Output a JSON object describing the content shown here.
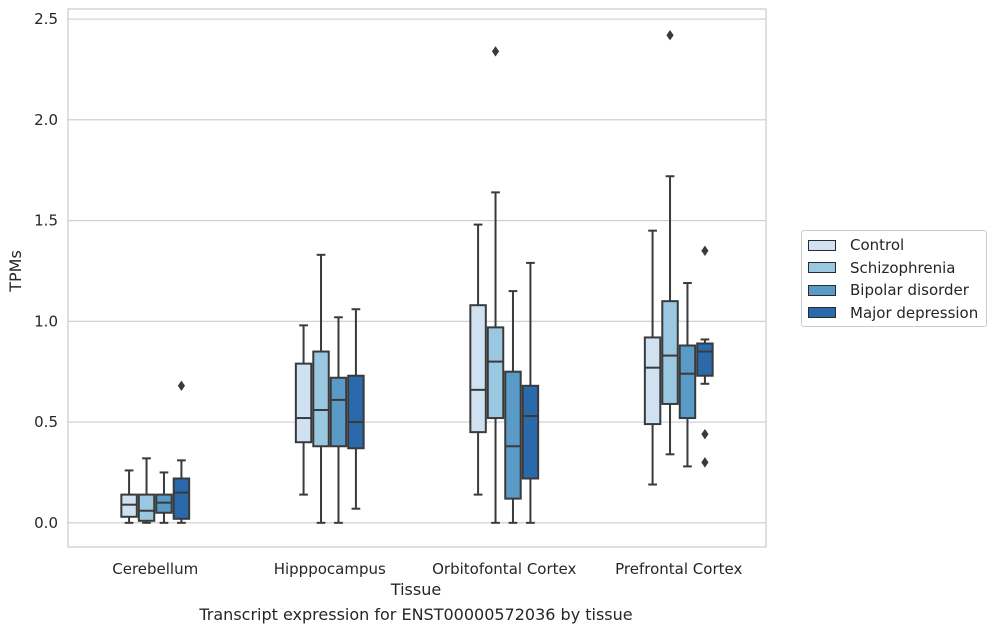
{
  "chart_data": {
    "type": "boxplot",
    "title": "Transcript expression for ENST00000572036 by tissue",
    "xlabel": "Tissue",
    "ylabel": "TPMs",
    "ylim": [
      -0.12,
      2.55
    ],
    "yticks": [
      "0.0",
      "0.5",
      "1.0",
      "1.5",
      "2.0",
      "2.5"
    ],
    "grid": true,
    "legend_position": "right",
    "categories": [
      "Cerebellum",
      "Hipppocampus",
      "Orbitofontal Cortex",
      "Prefrontal Cortex"
    ],
    "series": [
      {
        "name": "Control",
        "color": "#d0e1f2",
        "boxes": [
          {
            "min": 0.0,
            "q1": 0.03,
            "median": 0.09,
            "q3": 0.14,
            "max": 0.26,
            "outliers": []
          },
          {
            "min": 0.14,
            "q1": 0.4,
            "median": 0.52,
            "q3": 0.79,
            "max": 0.98,
            "outliers": []
          },
          {
            "min": 0.14,
            "q1": 0.45,
            "median": 0.66,
            "q3": 1.08,
            "max": 1.48,
            "outliers": []
          },
          {
            "min": 0.19,
            "q1": 0.49,
            "median": 0.77,
            "q3": 0.92,
            "max": 1.45,
            "outliers": []
          }
        ]
      },
      {
        "name": "Schizophrenia",
        "color": "#9ac8e0",
        "boxes": [
          {
            "min": 0.0,
            "q1": 0.01,
            "median": 0.06,
            "q3": 0.14,
            "max": 0.32,
            "outliers": []
          },
          {
            "min": 0.0,
            "q1": 0.38,
            "median": 0.56,
            "q3": 0.85,
            "max": 1.33,
            "outliers": []
          },
          {
            "min": 0.0,
            "q1": 0.52,
            "median": 0.8,
            "q3": 0.97,
            "max": 1.64,
            "outliers": [
              2.34
            ]
          },
          {
            "min": 0.34,
            "q1": 0.59,
            "median": 0.83,
            "q3": 1.1,
            "max": 1.72,
            "outliers": [
              2.42
            ]
          }
        ]
      },
      {
        "name": "Bipolar disorder",
        "color": "#5a9ac6",
        "boxes": [
          {
            "min": 0.0,
            "q1": 0.05,
            "median": 0.1,
            "q3": 0.14,
            "max": 0.25,
            "outliers": []
          },
          {
            "min": 0.0,
            "q1": 0.38,
            "median": 0.61,
            "q3": 0.72,
            "max": 1.02,
            "outliers": []
          },
          {
            "min": 0.0,
            "q1": 0.12,
            "median": 0.38,
            "q3": 0.75,
            "max": 1.15,
            "outliers": []
          },
          {
            "min": 0.28,
            "q1": 0.52,
            "median": 0.74,
            "q3": 0.88,
            "max": 1.19,
            "outliers": []
          }
        ]
      },
      {
        "name": "Major depression",
        "color": "#2a69aa",
        "boxes": [
          {
            "min": 0.0,
            "q1": 0.02,
            "median": 0.15,
            "q3": 0.22,
            "max": 0.31,
            "outliers": [
              0.68
            ]
          },
          {
            "min": 0.07,
            "q1": 0.37,
            "median": 0.5,
            "q3": 0.73,
            "max": 1.06,
            "outliers": []
          },
          {
            "min": 0.0,
            "q1": 0.22,
            "median": 0.53,
            "q3": 0.68,
            "max": 1.29,
            "outliers": []
          },
          {
            "min": 0.69,
            "q1": 0.73,
            "median": 0.85,
            "q3": 0.89,
            "max": 0.91,
            "outliers": [
              1.35,
              0.44,
              0.3
            ]
          }
        ]
      }
    ]
  }
}
